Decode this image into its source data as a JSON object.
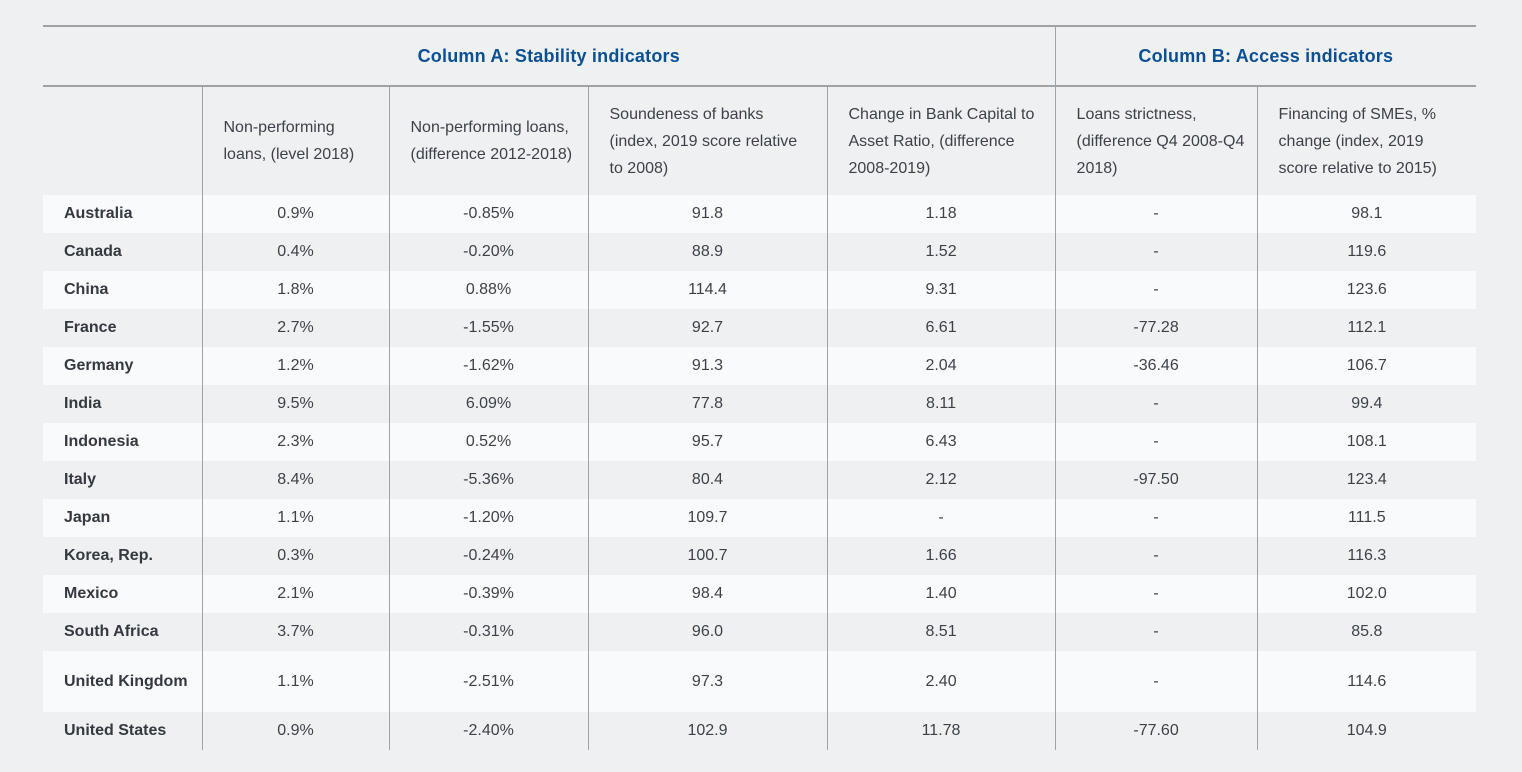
{
  "groups": {
    "a": "Column A: Stability indicators",
    "b": "Column B: Access indicators"
  },
  "headers": [
    "Non-performing loans, (level 2018)",
    "Non-performing loans, (difference 2012-2018)",
    "Soundeness of banks (index, 2019 score relative to 2008)",
    "Change in Bank Capital to Asset Ratio, (difference 2008-2019)",
    "Loans strictness, (difference Q4 2008-Q4 2018)",
    "Financing of SMEs, % change (index, 2019 score relative to 2015)"
  ],
  "rows": [
    {
      "country": "Australia",
      "v": [
        "0.9%",
        "-0.85%",
        "91.8",
        "1.18",
        "-",
        "98.1"
      ]
    },
    {
      "country": "Canada",
      "v": [
        "0.4%",
        "-0.20%",
        "88.9",
        "1.52",
        "-",
        "119.6"
      ]
    },
    {
      "country": "China",
      "v": [
        "1.8%",
        "0.88%",
        "114.4",
        "9.31",
        "-",
        "123.6"
      ]
    },
    {
      "country": "France",
      "v": [
        "2.7%",
        "-1.55%",
        "92.7",
        "6.61",
        "-77.28",
        "112.1"
      ]
    },
    {
      "country": "Germany",
      "v": [
        "1.2%",
        "-1.62%",
        "91.3",
        "2.04",
        "-36.46",
        "106.7"
      ]
    },
    {
      "country": "India",
      "v": [
        "9.5%",
        "6.09%",
        "77.8",
        "8.11",
        "-",
        "99.4"
      ]
    },
    {
      "country": "Indonesia",
      "v": [
        "2.3%",
        "0.52%",
        "95.7",
        "6.43",
        "-",
        "108.1"
      ]
    },
    {
      "country": "Italy",
      "v": [
        "8.4%",
        "-5.36%",
        "80.4",
        "2.12",
        "-97.50",
        "123.4"
      ]
    },
    {
      "country": "Japan",
      "v": [
        "1.1%",
        "-1.20%",
        "109.7",
        "-",
        "-",
        "111.5"
      ]
    },
    {
      "country": "Korea, Rep.",
      "v": [
        "0.3%",
        "-0.24%",
        "100.7",
        "1.66",
        "-",
        "116.3"
      ]
    },
    {
      "country": "Mexico",
      "v": [
        "2.1%",
        "-0.39%",
        "98.4",
        "1.40",
        "-",
        "102.0"
      ]
    },
    {
      "country": "South Africa",
      "v": [
        "3.7%",
        "-0.31%",
        "96.0",
        "8.51",
        "-",
        "85.8"
      ]
    },
    {
      "country": "United Kingdom",
      "v": [
        "1.1%",
        "-2.51%",
        "97.3",
        "2.40",
        "-",
        "114.6"
      ]
    },
    {
      "country": "United States",
      "v": [
        "0.9%",
        "-2.40%",
        "102.9",
        "11.78",
        "-77.60",
        "104.9"
      ]
    }
  ]
}
